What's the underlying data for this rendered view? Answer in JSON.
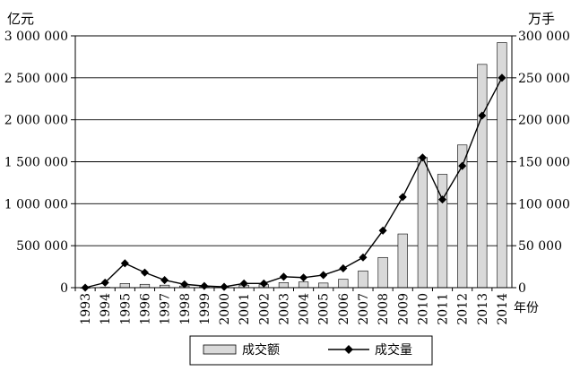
{
  "chart_data": {
    "type": "bar+line",
    "y_left_unit": "亿元",
    "y_right_unit": "万手",
    "x_unit": "年份",
    "categories": [
      "1993",
      "1994",
      "1995",
      "1996",
      "1997",
      "1998",
      "1999",
      "2000",
      "2001",
      "2002",
      "2003",
      "2004",
      "2005",
      "2006",
      "2007",
      "2008",
      "2009",
      "2010",
      "2011",
      "2012",
      "2013",
      "2014"
    ],
    "y_left_ticks": [
      "0",
      "500 000",
      "1 000 000",
      "1 500 000",
      "2 000 000",
      "2 500 000",
      "3 000 000"
    ],
    "y_right_ticks": [
      "0",
      "50 000",
      "100 000",
      "150 000",
      "200 000",
      "250 000",
      "300 000"
    ],
    "ylim_left": [
      0,
      3000000
    ],
    "ylim_right": [
      0,
      300000
    ],
    "grid": true,
    "legend_position": "bottom",
    "series": [
      {
        "name": "成交额",
        "type": "bar",
        "axis": "left",
        "color": "#d9d9d9",
        "values": [
          500,
          5000,
          50000,
          40000,
          30000,
          20000,
          11000,
          8000,
          30000,
          36000,
          60000,
          68000,
          55000,
          100000,
          200000,
          360000,
          640000,
          1550000,
          1350000,
          1700000,
          2660000,
          2920000
        ]
      },
      {
        "name": "成交量",
        "type": "line",
        "axis": "right",
        "color": "#000000",
        "values": [
          0,
          6000,
          29000,
          18000,
          9000,
          4000,
          2000,
          1000,
          5000,
          5000,
          13000,
          12000,
          15000,
          23000,
          36000,
          68000,
          108000,
          155000,
          105000,
          145000,
          205000,
          250000
        ]
      }
    ]
  }
}
